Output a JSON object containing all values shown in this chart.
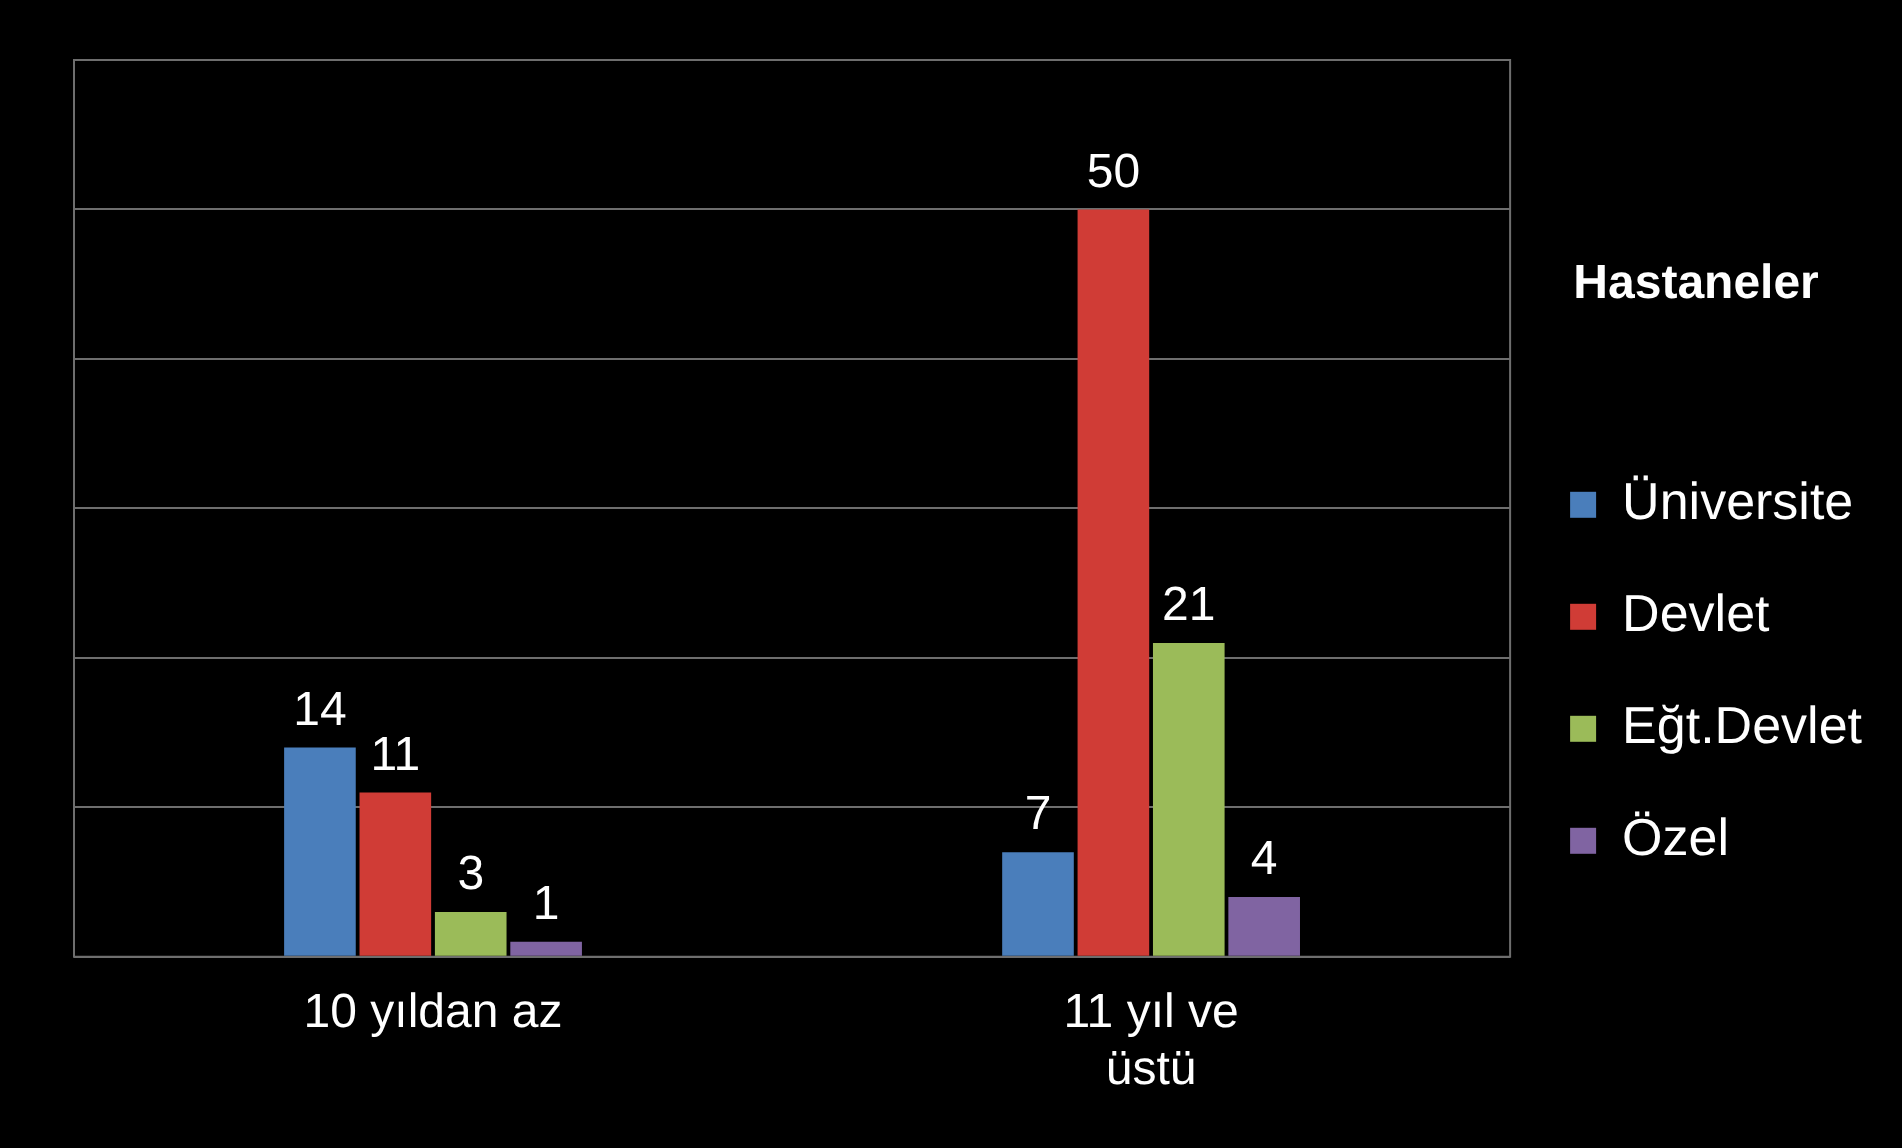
{
  "chart_data": {
    "type": "bar",
    "legend_title": "Hastaneler",
    "categories": [
      "10 yıldan az",
      "11 yıl ve üstü"
    ],
    "series": [
      {
        "name": "Üniversite",
        "color": "#4a7ebb",
        "values": [
          14,
          7
        ]
      },
      {
        "name": "Devlet",
        "color": "#d03c36",
        "values": [
          11,
          50
        ]
      },
      {
        "name": "Eğt.Devlet",
        "color": "#9bbb59",
        "values": [
          3,
          21
        ]
      },
      {
        "name": "Özel",
        "color": "#8064a2",
        "values": [
          1,
          4
        ]
      }
    ],
    "ylim": [
      0,
      60
    ],
    "yticks": [
      {
        "value": 0,
        "label": null
      },
      {
        "value": 10,
        "label": null
      },
      {
        "value": 20,
        "label": null
      },
      {
        "value": 30,
        "label": null
      },
      {
        "value": 40,
        "label": null
      },
      {
        "value": 50,
        "label": null
      },
      {
        "value": 60,
        "label": null
      }
    ],
    "grid": "y",
    "legend": "right",
    "data_labels": true,
    "tick_labels": "x"
  }
}
